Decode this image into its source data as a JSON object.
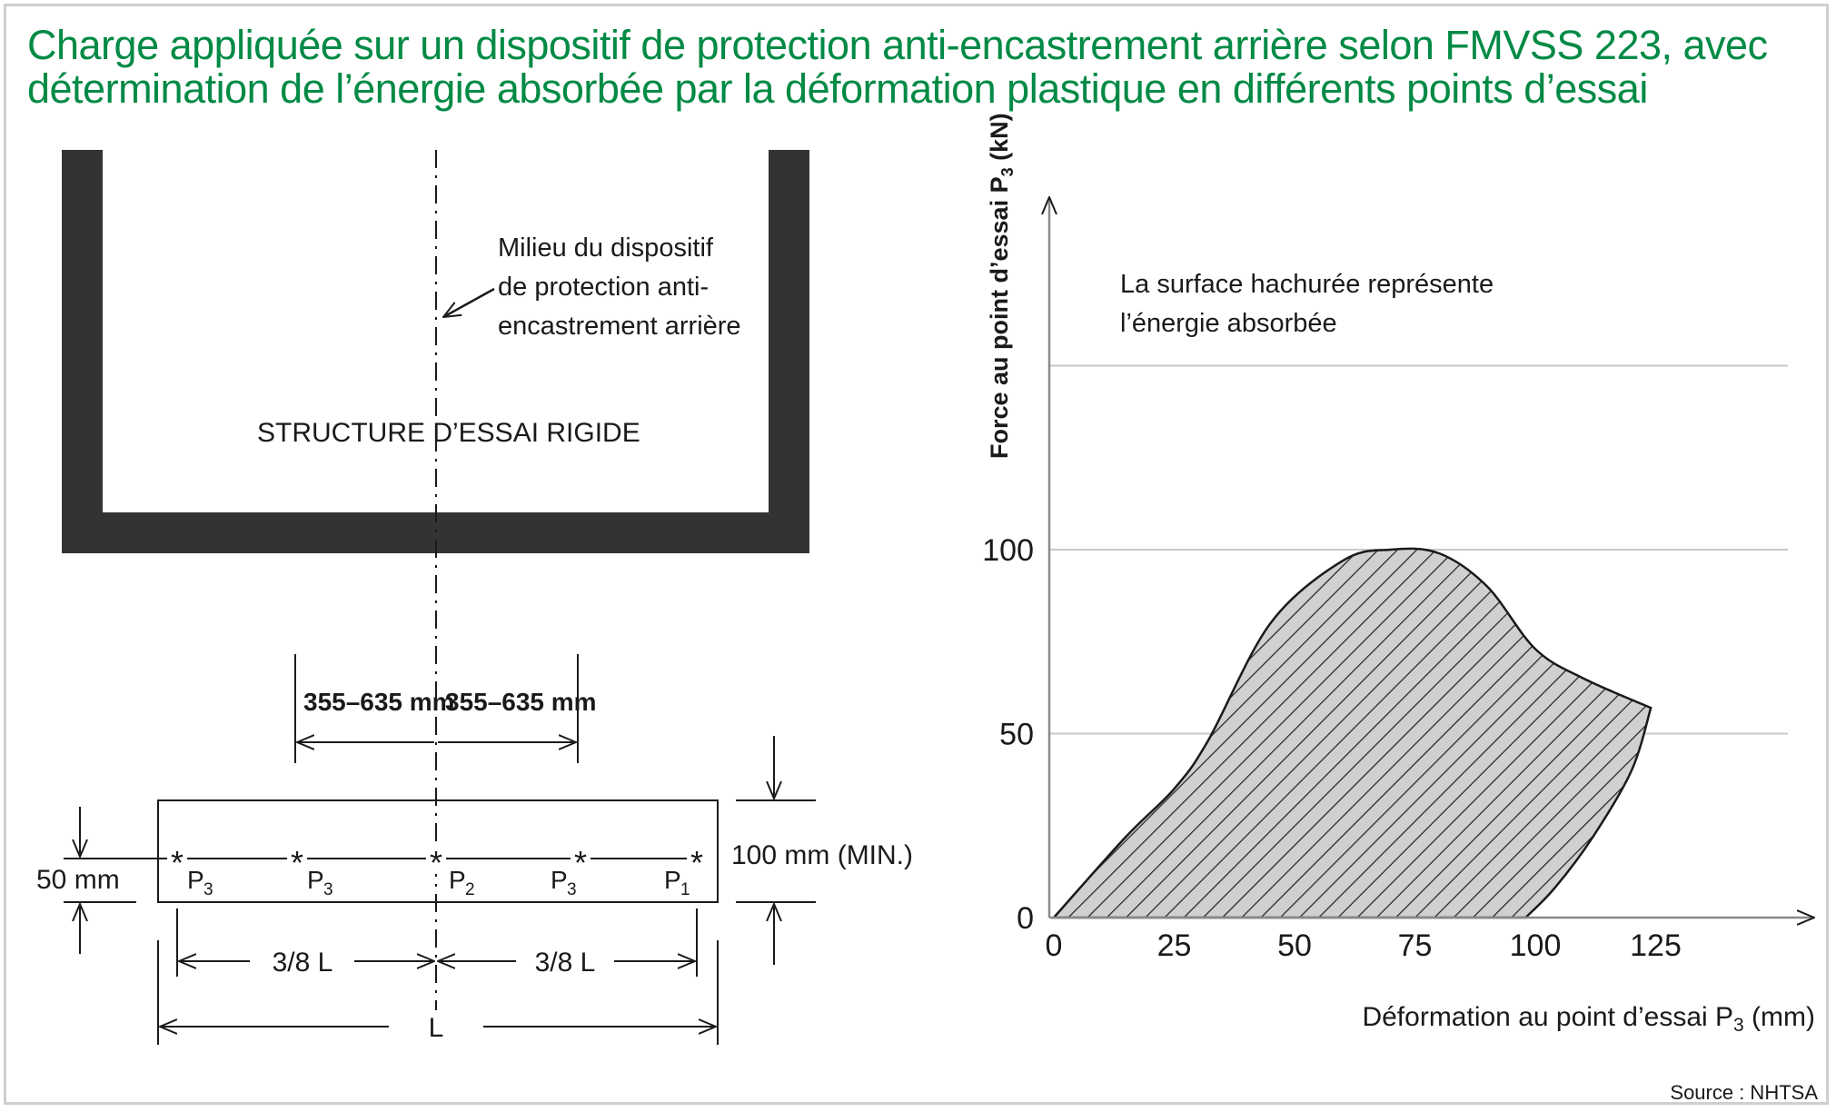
{
  "title": {
    "line1": "Charge appliquée sur un dispositif de protection anti-encastrement arrière selon FMVSS 223, avec",
    "line2": "détermination de l’énergie absorbée par la déformation plastique en différents points d’essai"
  },
  "left": {
    "middle_label": [
      "Milieu du dispositif",
      "de protection anti-",
      "encastrement arrière"
    ],
    "structure_label": "STRUCTURE D’ESSAI RIGIDE",
    "dim_left": "355–635 mm",
    "dim_right": "355–635 mm",
    "height_min": "100 mm (MIN.)",
    "height_50": "50 mm",
    "points": [
      "P",
      "P",
      "P",
      "P",
      "P"
    ],
    "point_subs": [
      "3",
      "3",
      "2",
      "3",
      "1"
    ],
    "span_left": "3/8 L",
    "span_right": "3/8 L",
    "span_total": "L"
  },
  "right": {
    "note_line1": "La surface hachurée représente",
    "note_line2": "l’énergie absorbée",
    "ylabel": "Force au point d’essai P",
    "ylabel_sub": "3",
    "ylabel_unit": " (kN)",
    "xlabel": "Déformation au point d’essai P",
    "xlabel_sub": "3",
    "xlabel_unit": " (mm)"
  },
  "chart_data": {
    "type": "area",
    "x_ticks": [
      "0",
      "25",
      "50",
      "75",
      "100",
      "125"
    ],
    "y_ticks": [
      "0",
      "50",
      "100"
    ],
    "xlabel": "Déformation au point d’essai P3 (mm)",
    "ylabel": "Force au point d’essai P3 (kN)",
    "loading_curve": {
      "x": [
        0,
        15,
        25,
        32,
        45,
        60,
        70,
        80,
        90,
        100,
        110,
        124
      ],
      "y": [
        0,
        22,
        35,
        48,
        80,
        97,
        100,
        99,
        90,
        73,
        65,
        57
      ]
    },
    "unloading_curve": {
      "x": [
        124,
        120,
        112,
        104,
        98
      ],
      "y": [
        57,
        40,
        22,
        8,
        0
      ]
    },
    "hatch": true,
    "grid": true
  },
  "source": "Source : NHTSA"
}
